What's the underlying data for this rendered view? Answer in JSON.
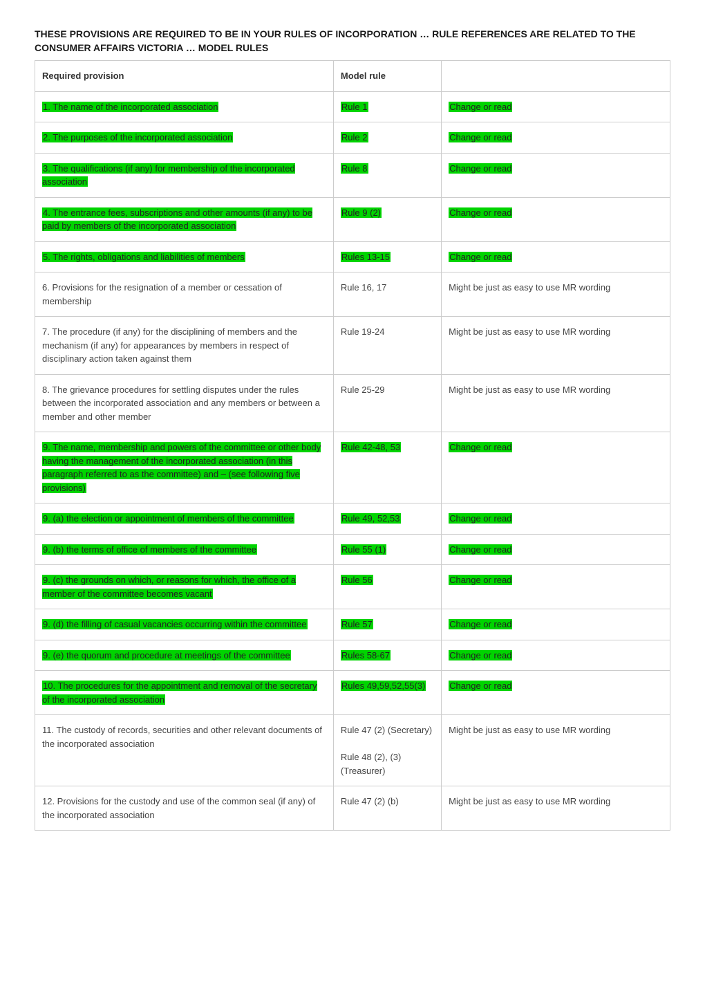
{
  "heading": "THESE PROVISIONS ARE REQUIRED TO BE IN YOUR RULES OF INCORPORATION … RULE REFERENCES ARE RELATED TO THE CONSUMER AFFAIRS VICTORIA … MODEL RULES",
  "columns": [
    "Required provision",
    "Model rule",
    ""
  ],
  "highlight_color": "#00d400",
  "border_color": "#cccccc",
  "background_color": "#ffffff",
  "text_color": "#444444",
  "heading_fontsize": 14,
  "cell_fontsize": 13,
  "column_widths_pct": [
    47,
    17,
    36
  ],
  "rows": [
    {
      "provision": "1. The name of the incorporated association",
      "rule": "Rule 1",
      "note": "Change or read",
      "highlight": true
    },
    {
      "provision": "2. The purposes of the incorporated association",
      "rule": "Rule 2",
      "note": "Change or read",
      "highlight": true
    },
    {
      "provision": "3. The qualifications (if any) for membership of the incorporated association",
      "rule": "Rule 8",
      "note": "Change or read",
      "highlight": true
    },
    {
      "provision": "4. The entrance fees, subscriptions and other amounts (if any) to be paid by members of the incorporated association",
      "rule": "Rule 9 (2)",
      "note": "Change or read",
      "highlight": true
    },
    {
      "provision": "5. The rights, obligations and liabilities of members",
      "rule": "Rules 13-15",
      "note": "Change or read",
      "highlight": true
    },
    {
      "provision": "6. Provisions for the resignation of a member or cessation of membership",
      "rule": "Rule 16, 17",
      "note": "Might be just as easy to use MR wording",
      "highlight": false
    },
    {
      "provision": "7. The procedure (if any) for the disciplining of members and the mechanism (if any) for appearances by members in respect of disciplinary action taken against them",
      "rule": "Rule 19-24",
      "note": "Might be just as easy to use MR wording",
      "highlight": false
    },
    {
      "provision": "8. The grievance procedures for settling disputes under the rules between the incorporated association and any members or between a member and other member",
      "rule": "Rule 25-29",
      "note": "Might be just as easy to use MR wording",
      "highlight": false
    },
    {
      "provision": "9. The name, membership and powers of the committee or other body having the management of the incorporated association (in this paragraph referred to as the committee) and – (see following five provisions)",
      "rule": "Rule 42-48, 53",
      "note": "Change or read",
      "highlight": true
    },
    {
      "provision": "9. (a) the election or appointment of members of the committee",
      "rule": "Rule 49, 52,53",
      "note": "Change or read",
      "highlight": true
    },
    {
      "provision": "9. (b) the terms of office of members of the committee",
      "rule": "Rule 55 (1)",
      "note": "Change or read",
      "highlight": true
    },
    {
      "provision": "9. (c) the grounds on which, or reasons for which, the office of a member of the committee becomes vacant",
      "rule": "Rule 56",
      "note": "Change or read",
      "highlight": true
    },
    {
      "provision": "9. (d) the filling of casual vacancies occurring within the committee",
      "rule": "Rule 57",
      "note": "Change or read",
      "highlight": true
    },
    {
      "provision": "9. (e) the quorum and procedure at meetings of the committee",
      "rule": "Rules 58-67",
      "note": "Change or read",
      "highlight": true
    },
    {
      "provision": "10. The procedures for the appointment and removal of the secretary of the incorporated association",
      "rule": "Rules 49,59,52,55(3)",
      "note": "Change or read",
      "highlight": true
    },
    {
      "provision": "11. The custody of records, securities and other relevant documents of the incorporated association",
      "rule": "Rule 47 (2) (Secretary)\n\nRule 48 (2), (3) (Treasurer)",
      "note": "Might be just as easy to use MR wording",
      "highlight": false
    },
    {
      "provision": "12. Provisions for the custody and use of the common seal (if any) of the incorporated association",
      "rule": "Rule 47 (2) (b)",
      "note": "Might be just as easy to use MR wording",
      "highlight": false
    }
  ]
}
